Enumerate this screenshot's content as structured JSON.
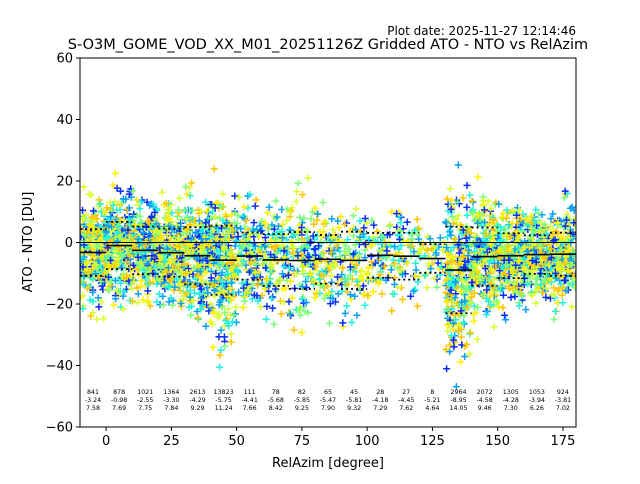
{
  "figure": {
    "plot_date": "Plot date: 2025-11-27 12:14:46",
    "title": "S-O3M_GOME_VOD_XX_M01_20251126Z Gridded ATO - NTO vs RelAzim",
    "xlabel": "RelAzim [degree]",
    "ylabel": "ATO - NTO [DU]"
  },
  "chart_data": {
    "type": "scatter",
    "title": "S-O3M_GOME_VOD_XX_M01_20251126Z Gridded ATO - NTO vs RelAzim",
    "xlabel": "RelAzim [degree]",
    "ylabel": "ATO - NTO [DU]",
    "xlim": [
      -10,
      180
    ],
    "ylim": [
      -60,
      60
    ],
    "xticks": [
      0,
      25,
      50,
      75,
      100,
      125,
      150,
      175
    ],
    "yticks": [
      -60,
      -40,
      -20,
      0,
      20,
      40,
      60
    ],
    "grid": false,
    "zero_line": 0,
    "colors": [
      "#0a2cf5",
      "#0aa0f5",
      "#22f0e0",
      "#7dff7a",
      "#d8ff33",
      "#fff000",
      "#ffc400"
    ],
    "bins": [
      {
        "x": -5,
        "n": "841",
        "mean": "-3.24",
        "sd": "7.58"
      },
      {
        "x": 5,
        "n": "878",
        "mean": "-0.98",
        "sd": "7.69"
      },
      {
        "x": 15,
        "n": "1021",
        "mean": "-2.55",
        "sd": "7.75"
      },
      {
        "x": 25,
        "n": "1364",
        "mean": "-3.30",
        "sd": "7.84"
      },
      {
        "x": 35,
        "n": "2613",
        "mean": "-4.29",
        "sd": "9.29"
      },
      {
        "x": 45,
        "n": "13823",
        "mean": "-5.75",
        "sd": "11.24"
      },
      {
        "x": 55,
        "n": "111",
        "mean": "-4.41",
        "sd": "7.66"
      },
      {
        "x": 65,
        "n": "78",
        "mean": "-5.68",
        "sd": "8.42"
      },
      {
        "x": 75,
        "n": "82",
        "mean": "-5.85",
        "sd": "9.25"
      },
      {
        "x": 85,
        "n": "65",
        "mean": "-5.47",
        "sd": "7.90"
      },
      {
        "x": 95,
        "n": "45",
        "mean": "-5.81",
        "sd": "9.32"
      },
      {
        "x": 105,
        "n": "28",
        "mean": "-4.18",
        "sd": "7.29"
      },
      {
        "x": 115,
        "n": "27",
        "mean": "-4.45",
        "sd": "7.62"
      },
      {
        "x": 125,
        "n": "8",
        "mean": "-5.21",
        "sd": "4.64"
      },
      {
        "x": 135,
        "n": "2964",
        "mean": "-8.95",
        "sd": "14.05"
      },
      {
        "x": 145,
        "n": "2072",
        "mean": "-4.58",
        "sd": "9.46"
      },
      {
        "x": 155,
        "n": "1305",
        "mean": "-4.28",
        "sd": "7.30"
      },
      {
        "x": 165,
        "n": "1053",
        "mean": "-3.94",
        "sd": "6.26"
      },
      {
        "x": 175,
        "n": "924",
        "mean": "-3.81",
        "sd": "7.02"
      }
    ]
  }
}
